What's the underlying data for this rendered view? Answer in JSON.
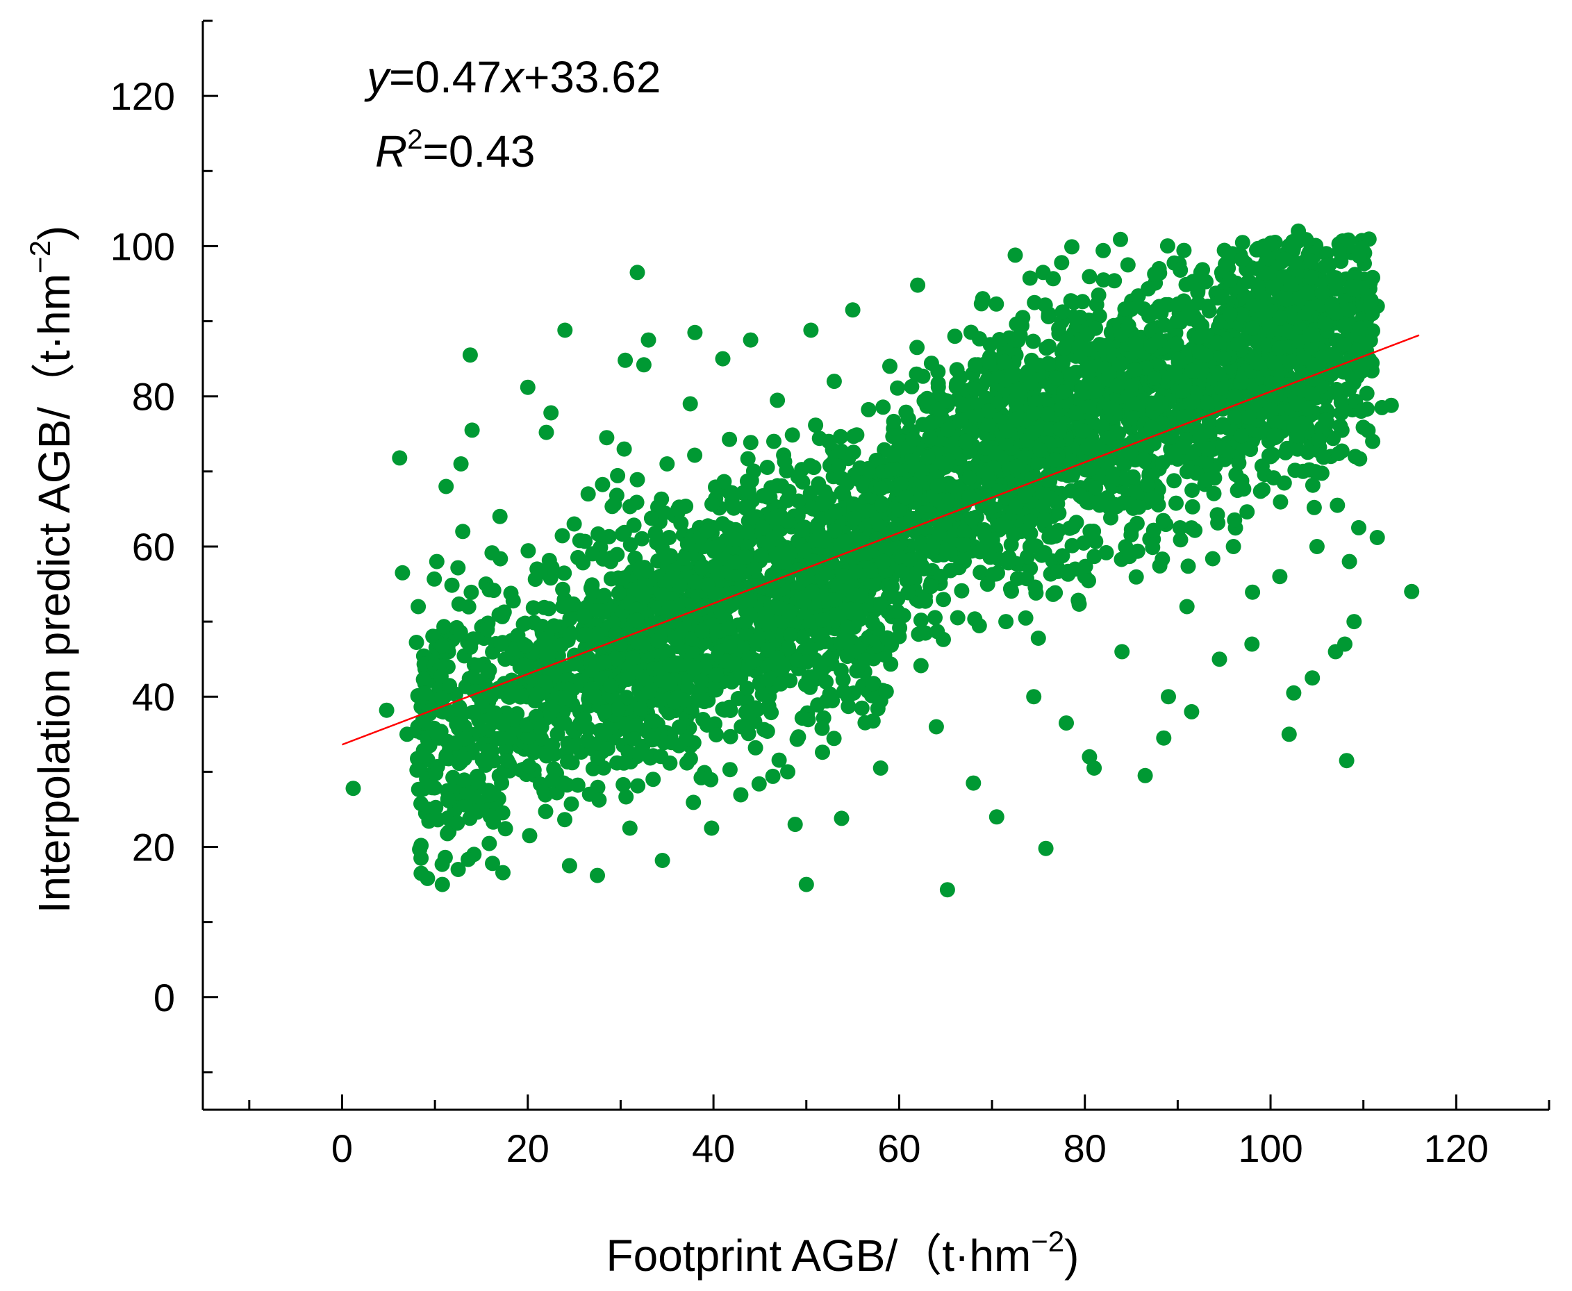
{
  "chart_data": {
    "type": "scatter",
    "xlabel": "Footprint AGB/（t·hm",
    "xlabel_sup": "−2",
    "xlabel_close": ")",
    "ylabel": "Interpolation predict AGB/（t·hm",
    "ylabel_sup": "−2",
    "ylabel_close": ")",
    "xlim": [
      -15,
      130
    ],
    "ylim": [
      -15,
      130
    ],
    "xticks": [
      0,
      20,
      40,
      60,
      80,
      100,
      120
    ],
    "yticks": [
      0,
      20,
      40,
      60,
      80,
      100,
      120
    ],
    "xtick_labels": [
      "0",
      "20",
      "40",
      "60",
      "80",
      "100",
      "120"
    ],
    "ytick_labels": [
      "0",
      "20",
      "40",
      "60",
      "80",
      "100",
      "120"
    ],
    "grid": false,
    "point_color": "#009933",
    "fit_line_color": "#ff0000",
    "fit": {
      "slope": 0.47,
      "intercept": 33.62,
      "x_range": [
        0,
        116
      ]
    },
    "annotation": {
      "eq_y": "y",
      "eq_mid": "=0.47",
      "eq_x": "x",
      "eq_rest": "+33.62",
      "r_letter": "R",
      "r_sup": "2",
      "r_rest": "=0.43"
    },
    "points": [
      [
        1.2,
        27.8
      ],
      [
        4.8,
        38.2
      ],
      [
        6.2,
        71.8
      ],
      [
        6.5,
        56.5
      ],
      [
        7.0,
        35.0
      ],
      [
        8.2,
        52.0
      ],
      [
        8.5,
        20.2
      ],
      [
        8.5,
        18.5
      ],
      [
        9.0,
        24.5
      ],
      [
        9.2,
        15.8
      ],
      [
        9.5,
        45.0
      ],
      [
        10.0,
        30.0
      ],
      [
        10.2,
        58.0
      ],
      [
        10.8,
        15.0
      ],
      [
        11.0,
        40.0
      ],
      [
        11.2,
        68.0
      ],
      [
        11.5,
        22.0
      ],
      [
        12.0,
        48.0
      ],
      [
        12.5,
        17.0
      ],
      [
        12.8,
        71.0
      ],
      [
        13.0,
        62.0
      ],
      [
        13.2,
        36.0
      ],
      [
        13.8,
        85.5
      ],
      [
        14.0,
        75.5
      ],
      [
        14.2,
        19.0
      ],
      [
        15.0,
        42.0
      ],
      [
        15.5,
        55.0
      ],
      [
        16.0,
        26.0
      ],
      [
        16.2,
        17.8
      ],
      [
        17.0,
        64.0
      ],
      [
        18.0,
        31.0
      ],
      [
        19.5,
        47.0
      ],
      [
        20.0,
        81.2
      ],
      [
        20.2,
        21.5
      ],
      [
        21.0,
        57.0
      ],
      [
        22.0,
        75.2
      ],
      [
        22.5,
        77.8
      ],
      [
        23.0,
        38.0
      ],
      [
        24.0,
        88.8
      ],
      [
        24.5,
        17.5
      ],
      [
        25.0,
        63.0
      ],
      [
        26.0,
        44.0
      ],
      [
        26.5,
        67.0
      ],
      [
        27.5,
        16.2
      ],
      [
        27.8,
        35.5
      ],
      [
        28.5,
        74.5
      ],
      [
        29.0,
        52.0
      ],
      [
        30.5,
        84.8
      ],
      [
        31.0,
        22.5
      ],
      [
        31.8,
        96.5
      ],
      [
        32.5,
        84.2
      ],
      [
        33.0,
        87.5
      ],
      [
        33.5,
        29.0
      ],
      [
        34.5,
        18.2
      ],
      [
        35.0,
        71.0
      ],
      [
        36.0,
        42.0
      ],
      [
        37.5,
        79.0
      ],
      [
        38.0,
        88.5
      ],
      [
        39.0,
        60.0
      ],
      [
        39.8,
        22.5
      ],
      [
        41.0,
        85.0
      ],
      [
        42.0,
        66.0
      ],
      [
        43.0,
        36.0
      ],
      [
        44.0,
        87.5
      ],
      [
        45.0,
        52.0
      ],
      [
        46.5,
        74.0
      ],
      [
        48.0,
        30.0
      ],
      [
        48.8,
        23.0
      ],
      [
        50.0,
        15.0
      ],
      [
        50.5,
        88.8
      ],
      [
        51.0,
        62.0
      ],
      [
        52.0,
        44.0
      ],
      [
        53.0,
        82.0
      ],
      [
        53.8,
        23.8
      ],
      [
        54.5,
        40.0
      ],
      [
        55.0,
        91.5
      ],
      [
        56.5,
        70.0
      ],
      [
        57.5,
        55.0
      ],
      [
        58.0,
        30.5
      ],
      [
        59.0,
        84.0
      ],
      [
        60.0,
        48.0
      ],
      [
        61.0,
        77.0
      ],
      [
        62.0,
        94.8
      ],
      [
        63.0,
        66.0
      ],
      [
        64.0,
        36.0
      ],
      [
        65.2,
        14.3
      ],
      [
        66.0,
        88.0
      ],
      [
        67.0,
        58.0
      ],
      [
        68.0,
        28.5
      ],
      [
        69.0,
        93.0
      ],
      [
        70.0,
        72.0
      ],
      [
        70.5,
        24.0
      ],
      [
        71.5,
        50.0
      ],
      [
        72.5,
        98.8
      ],
      [
        73.5,
        82.0
      ],
      [
        74.5,
        40.0
      ],
      [
        75.5,
        96.5
      ],
      [
        75.8,
        19.8
      ],
      [
        76.5,
        64.0
      ],
      [
        77.5,
        97.8
      ],
      [
        78.0,
        36.5
      ],
      [
        79.0,
        75.0
      ],
      [
        80.0,
        56.0
      ],
      [
        80.5,
        32.0
      ],
      [
        81.0,
        30.5
      ],
      [
        82.0,
        95.5
      ],
      [
        83.0,
        68.0
      ],
      [
        84.0,
        46.0
      ],
      [
        85.0,
        87.0
      ],
      [
        86.5,
        29.5
      ],
      [
        87.0,
        61.0
      ],
      [
        88.0,
        97.0
      ],
      [
        88.5,
        34.5
      ],
      [
        89.0,
        40.0
      ],
      [
        90.0,
        80.0
      ],
      [
        91.0,
        52.0
      ],
      [
        91.5,
        38.0
      ],
      [
        92.5,
        96.5
      ],
      [
        93.5,
        70.0
      ],
      [
        94.5,
        45.0
      ],
      [
        95.0,
        90.0
      ],
      [
        96.0,
        60.0
      ],
      [
        97.0,
        78.0
      ],
      [
        98.0,
        47.0
      ],
      [
        98.5,
        99.5
      ],
      [
        99.5,
        84.0
      ],
      [
        100.5,
        100.5
      ],
      [
        101.0,
        56.0
      ],
      [
        102.0,
        35.0
      ],
      [
        102.5,
        40.5
      ],
      [
        103.0,
        102.0
      ],
      [
        103.5,
        70.0
      ],
      [
        104.0,
        88.0
      ],
      [
        104.5,
        42.5
      ],
      [
        105.0,
        60.0
      ],
      [
        106.0,
        99.0
      ],
      [
        106.5,
        72.0
      ],
      [
        107.0,
        46.0
      ],
      [
        107.5,
        80.0
      ],
      [
        108.0,
        47.0
      ],
      [
        108.2,
        31.5
      ],
      [
        108.5,
        58.0
      ],
      [
        109.0,
        50.0
      ],
      [
        109.5,
        62.5
      ],
      [
        110.0,
        88.0
      ],
      [
        111.0,
        74.0
      ],
      [
        111.5,
        61.2
      ],
      [
        112.0,
        78.5
      ],
      [
        113.0,
        78.8
      ],
      [
        115.2,
        54.0
      ],
      [
        110.5,
        94.5
      ],
      [
        111.5,
        92.0
      ]
    ]
  }
}
